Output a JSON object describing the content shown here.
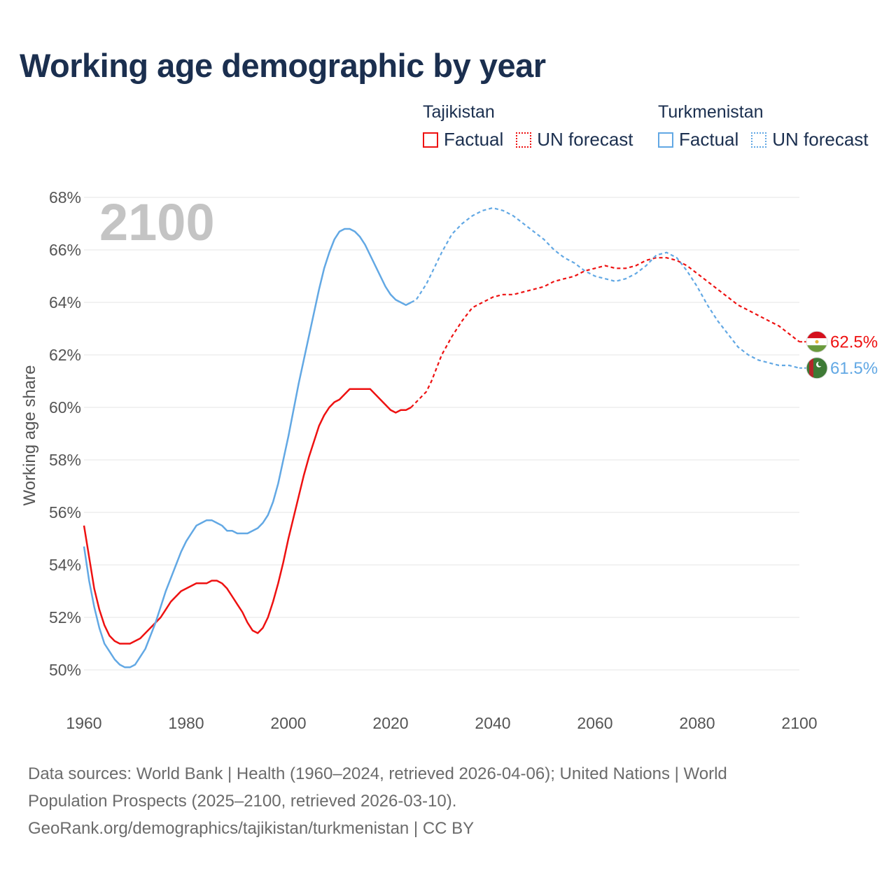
{
  "title": "Working age demographic by year",
  "legend": {
    "groups": [
      {
        "country": "Tajikistan",
        "factual_label": "Factual",
        "forecast_label": "UN forecast",
        "color": "#ee1111"
      },
      {
        "country": "Turkmenistan",
        "factual_label": "Factual",
        "forecast_label": "UN forecast",
        "color": "#62a8e4"
      }
    ]
  },
  "year_watermark": "2100",
  "footer": {
    "line1": "Data sources: World Bank | Health (1960–2024, retrieved 2026-04-06); United Nations | World",
    "line2": "Population Prospects (2025–2100, retrieved 2026-03-10).",
    "line3": "GeoRank.org/demographics/tajikistan/turkmenistan | CC BY"
  },
  "chart_data": {
    "type": "line",
    "title": "Working age demographic by year",
    "xlabel": "",
    "ylabel": "Working age share",
    "xlim": [
      1960,
      2100
    ],
    "ylim": [
      50,
      68
    ],
    "x_ticks": [
      "1960",
      "1980",
      "2000",
      "2020",
      "2040",
      "2060",
      "2080",
      "2100"
    ],
    "y_ticks": [
      "50%",
      "52%",
      "54%",
      "56%",
      "58%",
      "60%",
      "62%",
      "64%",
      "66%",
      "68%"
    ],
    "grid": true,
    "factual_end_year": 2024,
    "series": [
      {
        "name": "Tajikistan",
        "color": "#ee1111",
        "end_label": "62.5%",
        "flag": "tajikistan-flag",
        "points": [
          [
            1960,
            55.5
          ],
          [
            1961,
            54.3
          ],
          [
            1962,
            53.1
          ],
          [
            1963,
            52.3
          ],
          [
            1964,
            51.7
          ],
          [
            1965,
            51.3
          ],
          [
            1966,
            51.1
          ],
          [
            1967,
            51.0
          ],
          [
            1968,
            51.0
          ],
          [
            1969,
            51.0
          ],
          [
            1970,
            51.1
          ],
          [
            1971,
            51.2
          ],
          [
            1972,
            51.4
          ],
          [
            1973,
            51.6
          ],
          [
            1974,
            51.8
          ],
          [
            1975,
            52.0
          ],
          [
            1976,
            52.3
          ],
          [
            1977,
            52.6
          ],
          [
            1978,
            52.8
          ],
          [
            1979,
            53.0
          ],
          [
            1980,
            53.1
          ],
          [
            1981,
            53.2
          ],
          [
            1982,
            53.3
          ],
          [
            1983,
            53.3
          ],
          [
            1984,
            53.3
          ],
          [
            1985,
            53.4
          ],
          [
            1986,
            53.4
          ],
          [
            1987,
            53.3
          ],
          [
            1988,
            53.1
          ],
          [
            1989,
            52.8
          ],
          [
            1990,
            52.5
          ],
          [
            1991,
            52.2
          ],
          [
            1992,
            51.8
          ],
          [
            1993,
            51.5
          ],
          [
            1994,
            51.4
          ],
          [
            1995,
            51.6
          ],
          [
            1996,
            52.0
          ],
          [
            1997,
            52.6
          ],
          [
            1998,
            53.3
          ],
          [
            1999,
            54.1
          ],
          [
            2000,
            55.0
          ],
          [
            2001,
            55.8
          ],
          [
            2002,
            56.6
          ],
          [
            2003,
            57.4
          ],
          [
            2004,
            58.1
          ],
          [
            2005,
            58.7
          ],
          [
            2006,
            59.3
          ],
          [
            2007,
            59.7
          ],
          [
            2008,
            60.0
          ],
          [
            2009,
            60.2
          ],
          [
            2010,
            60.3
          ],
          [
            2011,
            60.5
          ],
          [
            2012,
            60.7
          ],
          [
            2013,
            60.7
          ],
          [
            2014,
            60.7
          ],
          [
            2015,
            60.7
          ],
          [
            2016,
            60.7
          ],
          [
            2017,
            60.5
          ],
          [
            2018,
            60.3
          ],
          [
            2019,
            60.1
          ],
          [
            2020,
            59.9
          ],
          [
            2021,
            59.8
          ],
          [
            2022,
            59.9
          ],
          [
            2023,
            59.9
          ],
          [
            2024,
            60.0
          ],
          [
            2025,
            60.2
          ],
          [
            2026,
            60.4
          ],
          [
            2027,
            60.6
          ],
          [
            2028,
            61.0
          ],
          [
            2029,
            61.5
          ],
          [
            2030,
            62.0
          ],
          [
            2032,
            62.7
          ],
          [
            2034,
            63.3
          ],
          [
            2036,
            63.8
          ],
          [
            2038,
            64.0
          ],
          [
            2040,
            64.2
          ],
          [
            2042,
            64.3
          ],
          [
            2044,
            64.3
          ],
          [
            2046,
            64.4
          ],
          [
            2048,
            64.5
          ],
          [
            2050,
            64.6
          ],
          [
            2052,
            64.8
          ],
          [
            2054,
            64.9
          ],
          [
            2056,
            65.0
          ],
          [
            2058,
            65.2
          ],
          [
            2060,
            65.3
          ],
          [
            2062,
            65.4
          ],
          [
            2064,
            65.3
          ],
          [
            2066,
            65.3
          ],
          [
            2068,
            65.4
          ],
          [
            2070,
            65.6
          ],
          [
            2072,
            65.7
          ],
          [
            2074,
            65.7
          ],
          [
            2076,
            65.6
          ],
          [
            2078,
            65.4
          ],
          [
            2080,
            65.1
          ],
          [
            2082,
            64.8
          ],
          [
            2084,
            64.5
          ],
          [
            2086,
            64.2
          ],
          [
            2088,
            63.9
          ],
          [
            2090,
            63.7
          ],
          [
            2092,
            63.5
          ],
          [
            2094,
            63.3
          ],
          [
            2096,
            63.1
          ],
          [
            2098,
            62.8
          ],
          [
            2100,
            62.5
          ]
        ]
      },
      {
        "name": "Turkmenistan",
        "color": "#62a8e4",
        "end_label": "61.5%",
        "flag": "turkmenistan-flag",
        "points": [
          [
            1960,
            54.7
          ],
          [
            1961,
            53.4
          ],
          [
            1962,
            52.4
          ],
          [
            1963,
            51.6
          ],
          [
            1964,
            51.0
          ],
          [
            1965,
            50.7
          ],
          [
            1966,
            50.4
          ],
          [
            1967,
            50.2
          ],
          [
            1968,
            50.1
          ],
          [
            1969,
            50.1
          ],
          [
            1970,
            50.2
          ],
          [
            1971,
            50.5
          ],
          [
            1972,
            50.8
          ],
          [
            1973,
            51.3
          ],
          [
            1974,
            51.8
          ],
          [
            1975,
            52.4
          ],
          [
            1976,
            53.0
          ],
          [
            1977,
            53.5
          ],
          [
            1978,
            54.0
          ],
          [
            1979,
            54.5
          ],
          [
            1980,
            54.9
          ],
          [
            1981,
            55.2
          ],
          [
            1982,
            55.5
          ],
          [
            1983,
            55.6
          ],
          [
            1984,
            55.7
          ],
          [
            1985,
            55.7
          ],
          [
            1986,
            55.6
          ],
          [
            1987,
            55.5
          ],
          [
            1988,
            55.3
          ],
          [
            1989,
            55.3
          ],
          [
            1990,
            55.2
          ],
          [
            1991,
            55.2
          ],
          [
            1992,
            55.2
          ],
          [
            1993,
            55.3
          ],
          [
            1994,
            55.4
          ],
          [
            1995,
            55.6
          ],
          [
            1996,
            55.9
          ],
          [
            1997,
            56.4
          ],
          [
            1998,
            57.1
          ],
          [
            1999,
            58.0
          ],
          [
            2000,
            58.9
          ],
          [
            2001,
            59.9
          ],
          [
            2002,
            60.9
          ],
          [
            2003,
            61.8
          ],
          [
            2004,
            62.7
          ],
          [
            2005,
            63.6
          ],
          [
            2006,
            64.5
          ],
          [
            2007,
            65.3
          ],
          [
            2008,
            65.9
          ],
          [
            2009,
            66.4
          ],
          [
            2010,
            66.7
          ],
          [
            2011,
            66.8
          ],
          [
            2012,
            66.8
          ],
          [
            2013,
            66.7
          ],
          [
            2014,
            66.5
          ],
          [
            2015,
            66.2
          ],
          [
            2016,
            65.8
          ],
          [
            2017,
            65.4
          ],
          [
            2018,
            65.0
          ],
          [
            2019,
            64.6
          ],
          [
            2020,
            64.3
          ],
          [
            2021,
            64.1
          ],
          [
            2022,
            64.0
          ],
          [
            2023,
            63.9
          ],
          [
            2024,
            64.0
          ],
          [
            2025,
            64.1
          ],
          [
            2026,
            64.4
          ],
          [
            2027,
            64.7
          ],
          [
            2028,
            65.1
          ],
          [
            2030,
            65.9
          ],
          [
            2032,
            66.6
          ],
          [
            2034,
            67.0
          ],
          [
            2036,
            67.3
          ],
          [
            2038,
            67.5
          ],
          [
            2040,
            67.6
          ],
          [
            2042,
            67.5
          ],
          [
            2044,
            67.3
          ],
          [
            2046,
            67.0
          ],
          [
            2048,
            66.7
          ],
          [
            2050,
            66.4
          ],
          [
            2052,
            66.0
          ],
          [
            2054,
            65.7
          ],
          [
            2056,
            65.5
          ],
          [
            2058,
            65.2
          ],
          [
            2060,
            65.0
          ],
          [
            2062,
            64.9
          ],
          [
            2064,
            64.8
          ],
          [
            2066,
            64.9
          ],
          [
            2068,
            65.1
          ],
          [
            2070,
            65.4
          ],
          [
            2072,
            65.8
          ],
          [
            2074,
            65.9
          ],
          [
            2076,
            65.7
          ],
          [
            2078,
            65.2
          ],
          [
            2080,
            64.6
          ],
          [
            2082,
            63.9
          ],
          [
            2084,
            63.3
          ],
          [
            2086,
            62.8
          ],
          [
            2088,
            62.3
          ],
          [
            2090,
            62.0
          ],
          [
            2092,
            61.8
          ],
          [
            2094,
            61.7
          ],
          [
            2096,
            61.6
          ],
          [
            2098,
            61.6
          ],
          [
            2100,
            61.5
          ]
        ]
      }
    ]
  }
}
